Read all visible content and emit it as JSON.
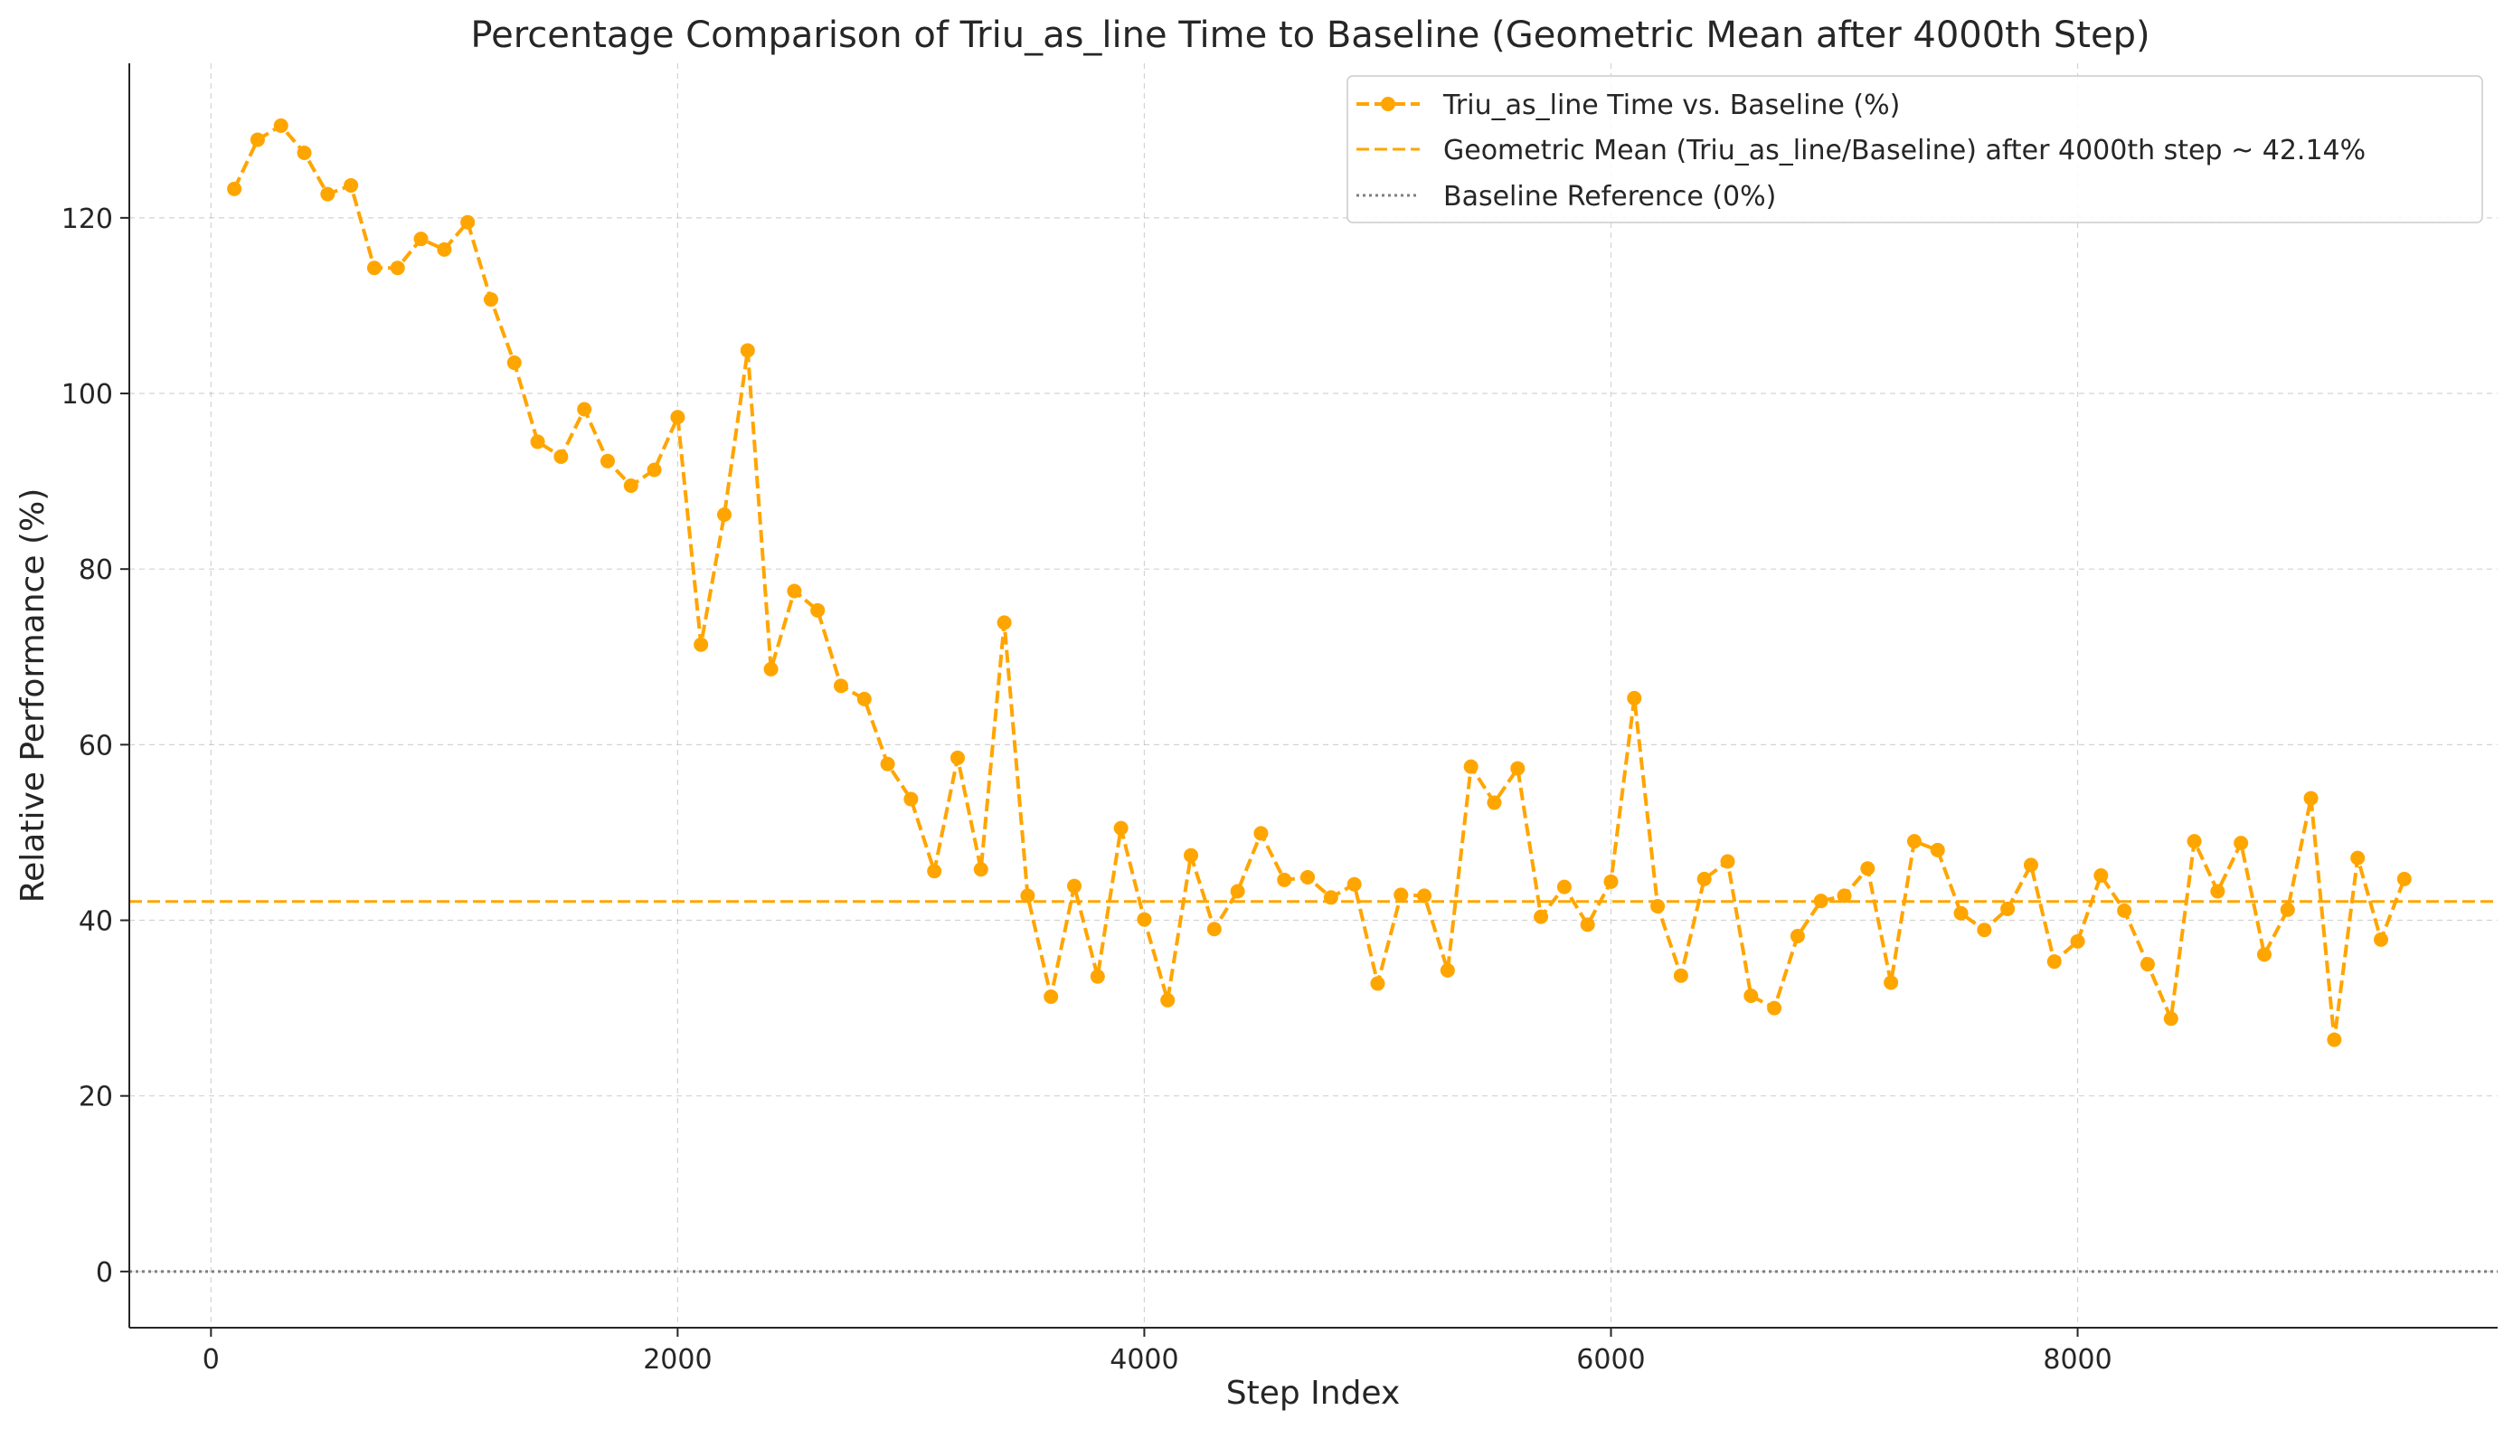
{
  "chart_data": {
    "type": "line",
    "title": "Percentage Comparison of Triu_as_line Time to Baseline (Geometric Mean after 4000th Step)",
    "xlabel": "Step Index",
    "ylabel": "Relative Performance (%)",
    "xlim": [
      -350,
      9800
    ],
    "ylim": [
      -6.4,
      137.6
    ],
    "xticks": [
      0,
      2000,
      4000,
      6000,
      8000
    ],
    "yticks": [
      0,
      20,
      40,
      60,
      80,
      100,
      120
    ],
    "grid": true,
    "legend_position": "top-right",
    "colors": {
      "series": "#FFA500",
      "mean": "#FFA500",
      "baseline": "#7f7f7f"
    },
    "series": [
      {
        "name": "Triu_as_line Time vs. Baseline (%)",
        "style": "dashed-line-with-markers",
        "x": [
          100,
          200,
          300,
          400,
          500,
          600,
          700,
          800,
          900,
          1000,
          1100,
          1200,
          1300,
          1400,
          1500,
          1600,
          1700,
          1800,
          1900,
          2000,
          2100,
          2200,
          2300,
          2400,
          2500,
          2600,
          2700,
          2800,
          2900,
          3000,
          3100,
          3200,
          3300,
          3400,
          3500,
          3600,
          3700,
          3800,
          3900,
          4000,
          4100,
          4200,
          4300,
          4400,
          4500,
          4600,
          4700,
          4800,
          4900,
          5000,
          5100,
          5200,
          5300,
          5400,
          5500,
          5600,
          5700,
          5800,
          5900,
          6000,
          6100,
          6200,
          6300,
          6400,
          6500,
          6600,
          6700,
          6800,
          6900,
          7000,
          7100,
          7200,
          7300,
          7400,
          7500,
          7600,
          7700,
          7800,
          7900,
          8000,
          8100,
          8200,
          8300,
          8400,
          8500,
          8600,
          8700,
          8800,
          8900,
          9000,
          9100,
          9200,
          9300,
          9400
        ],
        "values": [
          123.3,
          128.9,
          130.5,
          127.4,
          122.7,
          123.7,
          114.3,
          114.3,
          117.6,
          116.4,
          119.5,
          110.7,
          103.5,
          94.5,
          92.8,
          98.2,
          92.3,
          89.5,
          91.3,
          97.3,
          71.4,
          86.2,
          104.9,
          68.6,
          77.5,
          75.3,
          66.7,
          65.2,
          57.8,
          53.8,
          45.6,
          58.5,
          45.8,
          73.9,
          42.8,
          31.3,
          43.9,
          33.6,
          50.5,
          40.1,
          30.9,
          47.4,
          39.0,
          43.3,
          49.9,
          44.6,
          44.9,
          42.6,
          44.1,
          32.8,
          42.9,
          42.8,
          34.3,
          57.5,
          53.4,
          57.3,
          40.4,
          43.8,
          39.5,
          44.4,
          65.3,
          41.6,
          33.7,
          44.7,
          46.7,
          31.4,
          30.0,
          38.2,
          42.2,
          42.8,
          45.9,
          32.9,
          49.0,
          48.0,
          40.8,
          38.9,
          41.3,
          46.3,
          35.3,
          37.6,
          45.1,
          41.1,
          35.0,
          28.8,
          49.0,
          43.3,
          48.8,
          36.1,
          41.2,
          53.9,
          26.4,
          47.1,
          37.8,
          44.7
        ]
      },
      {
        "name": "Geometric Mean (Triu_as_line/Baseline) after 4000th step ~ 42.14%",
        "style": "dashed-horizontal-line",
        "y": 42.14
      },
      {
        "name": "Baseline Reference (0%)",
        "style": "dotted-horizontal-line",
        "y": 0
      }
    ]
  }
}
